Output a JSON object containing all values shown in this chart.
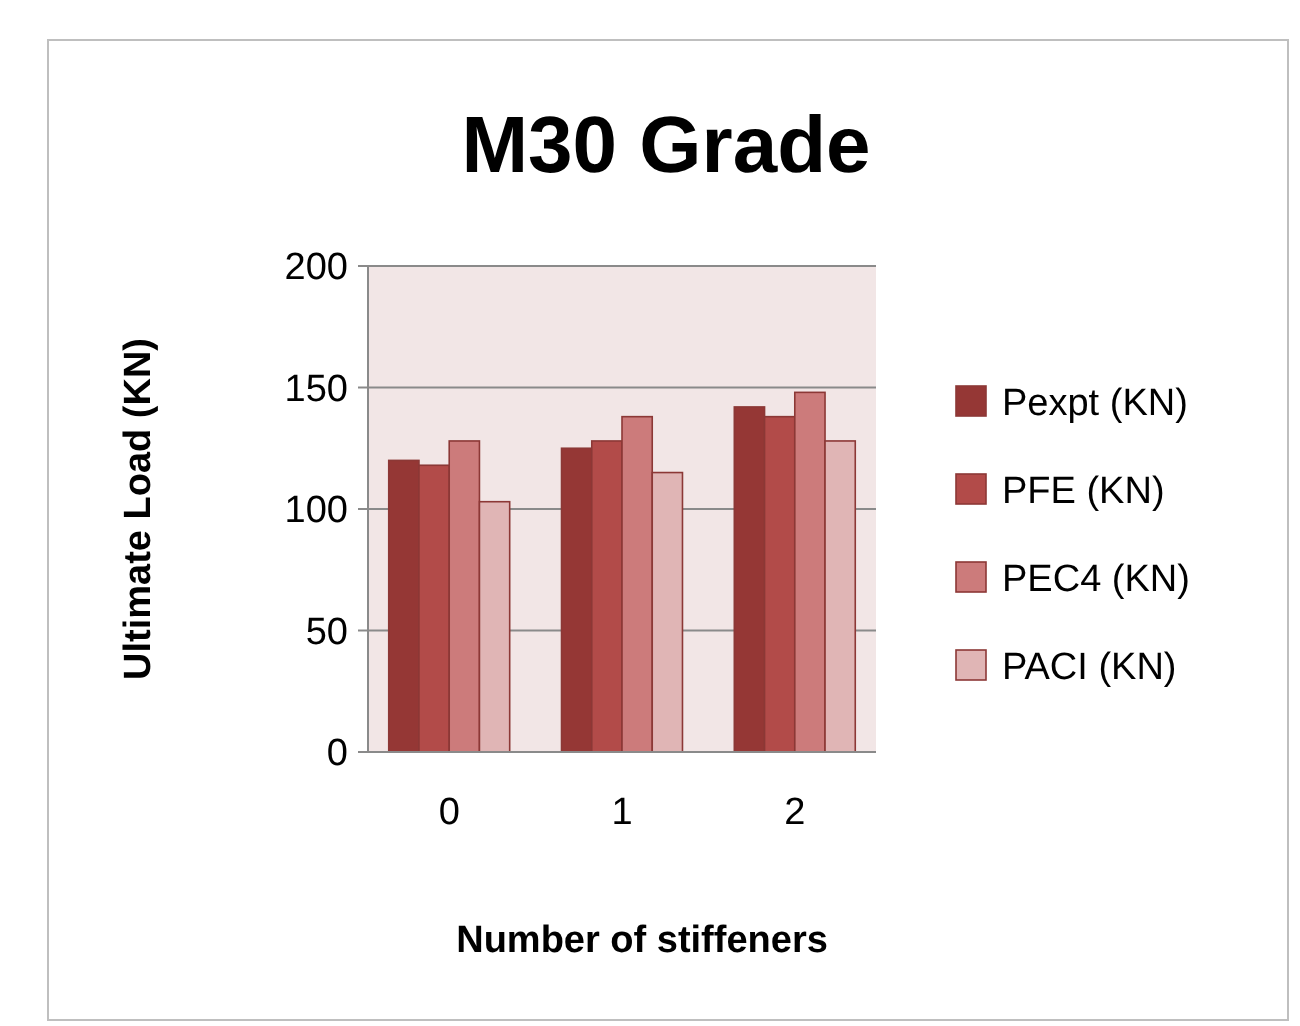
{
  "chart_data": {
    "type": "bar",
    "title": "M30 Grade",
    "xlabel": "Number of stiffeners",
    "ylabel": "Ultimate Load (KN)",
    "categories": [
      "0",
      "1",
      "2"
    ],
    "series": [
      {
        "name": "Pexpt (KN)",
        "color": "#953735",
        "values": [
          120,
          125,
          142
        ]
      },
      {
        "name": "PFE (KN)",
        "color": "#b24b49",
        "values": [
          118,
          128,
          138
        ]
      },
      {
        "name": "PEC4 (KN)",
        "color": "#cc7b7b",
        "values": [
          128,
          138,
          148
        ]
      },
      {
        "name": "PACI (KN)",
        "color": "#e0b5b5",
        "values": [
          103,
          115,
          128
        ]
      }
    ],
    "ylim": [
      0,
      200
    ],
    "yticks": [
      0,
      50,
      100,
      150,
      200
    ],
    "grid": "y",
    "legend": "right"
  }
}
